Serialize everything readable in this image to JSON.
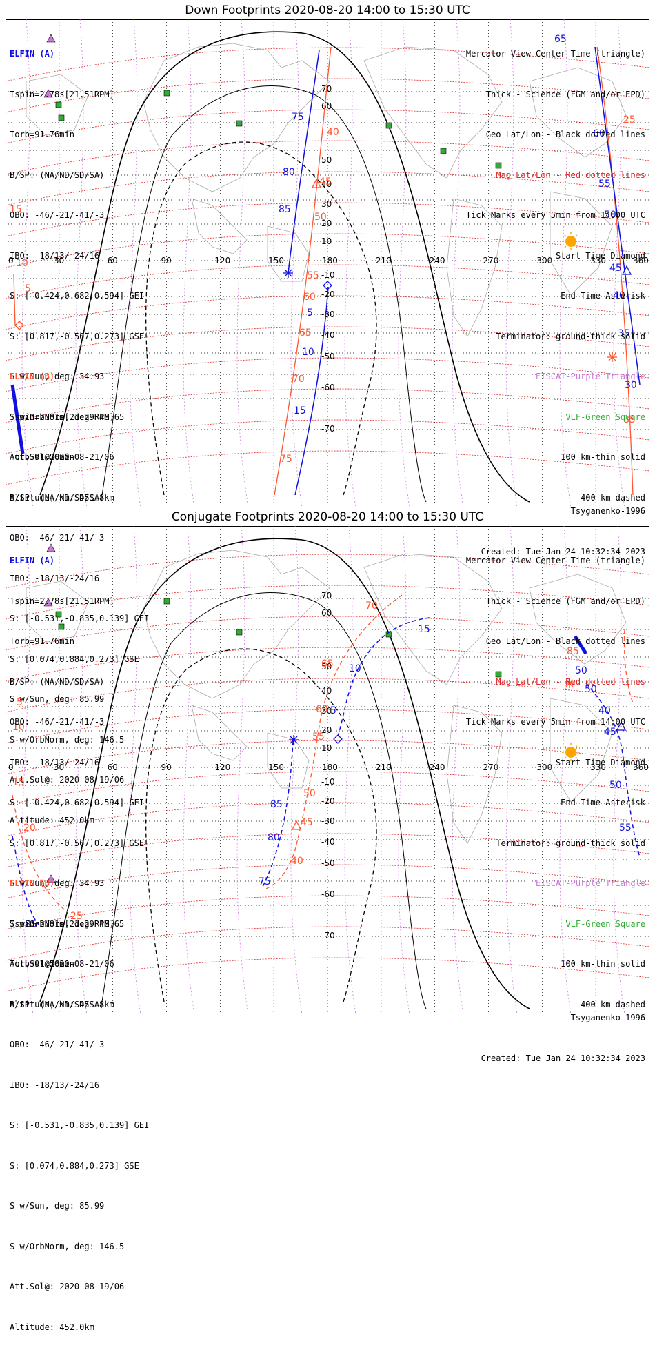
{
  "panels": [
    {
      "title": "Down Footprints 2020-08-20 14:00 to 15:30 UTC",
      "sat_a": {
        "name": "ELFIN (A)",
        "lines": [
          "Tspin=2.78s[21.51RPM]",
          "Torb=91.76min",
          "B/SP: (NA/ND/SD/SA)",
          "OBO: -46/-21/-41/-3",
          "IBO: -18/13/-24/16",
          "S: [-0.424,0.682,0.594] GEI",
          "S: [0.817,-0.507,0.273] GSE",
          "S w/Sun, deg: 34.93",
          "S w/OrbNorm, deg: 48.65",
          "Att.Sol@2020-08-21/06",
          "Altitude, km: 451.8km"
        ]
      },
      "sat_b": {
        "name": "ELFIN (B)",
        "lines": [
          "Tspin=2.81s[21.29RPM]",
          "Torb=91.56min",
          "B/SP: (NA/ND/SD/SA)",
          "OBO: -46/-21/-41/-3",
          "IBO: -18/13/-24/16",
          "S: [-0.531,-0.835,0.139] GEI",
          "S: [0.074,0.884,0.273] GSE",
          "S w/Sun, deg: 85.99",
          "S w/OrbNorm, deg: 146.5",
          "Att.Sol@: 2020-08-19/06",
          "Altitude: 452.0km"
        ]
      },
      "legend": [
        "Mercator View Center Time (triangle)",
        "Thick - Science (FGM and/or EPD)",
        "Geo Lat/Lon - Black dotted lines",
        "Mag Lat/Lon - Red dotted lines",
        "Tick Marks every 5min from 14:00 UTC",
        "Start Time-Diamond",
        "End Time-Asterisk",
        "Terminator: ground-thick solid",
        "EISCAT-Purple Triangle",
        "VLF-Green Square",
        "100 km-thin solid",
        "400 km-dashed"
      ],
      "model": "Tsyganenko-1996",
      "created": "Created: Tue Jan 24 10:32:34 2023"
    },
    {
      "title": "Conjugate Footprints 2020-08-20 14:00 to 15:30 UTC",
      "sat_a": {
        "name": "ELFIN (A)",
        "lines": [
          "Tspin=2.78s[21.51RPM]",
          "Torb=91.76min",
          "B/SP: (NA/ND/SD/SA)",
          "OBO: -46/-21/-41/-3",
          "IBO: -18/13/-24/16",
          "S: [-0.424,0.682,0.594] GEI",
          "S: [0.817,-0.507,0.273] GSE",
          "S w/Sun, deg: 34.93",
          "S w/OrbNorm, deg: 48.65",
          "Att.Sol@2020-08-21/06",
          "Altitude, km: 451.8km"
        ]
      },
      "sat_b": {
        "name": "ELFIN (B)",
        "lines": [
          "Tspin=2.81s[21.29RPM]",
          "Torb=91.56min",
          "B/SP: (NA/ND/SD/SA)",
          "OBO: -46/-21/-41/-3",
          "IBO: -18/13/-24/16",
          "S: [-0.531,-0.835,0.139] GEI",
          "S: [0.074,0.884,0.273] GSE",
          "S w/Sun, deg: 85.99",
          "S w/OrbNorm, deg: 146.5",
          "Att.Sol@: 2020-08-19/06",
          "Altitude: 452.0km"
        ]
      },
      "legend": [
        "Mercator View Center Time (triangle)",
        "Thick - Science (FGM and/or EPD)",
        "Geo Lat/Lon - Black dotted lines",
        "Mag Lat/Lon - Red dotted lines",
        "Tick Marks every 5min from 14:00 UTC",
        "Start Time-Diamond",
        "End Time-Asterisk",
        "Terminator: ground-thick solid",
        "EISCAT-Purple Triangle",
        "VLF-Green Square",
        "100 km-thin solid",
        "400 km-dashed"
      ],
      "model": "Tsyganenko-1996",
      "created": "Created: Tue Jan 24 10:32:34 2023"
    }
  ],
  "axes": {
    "lon_ticks": [
      "0",
      "30",
      "60",
      "90",
      "120",
      "150",
      "180",
      "210",
      "240",
      "270",
      "300",
      "330",
      "360"
    ],
    "lat_ticks": [
      "70",
      "60",
      "50",
      "40",
      "30",
      "20",
      "10",
      "-10",
      "-20",
      "-30",
      "-40",
      "-50",
      "-60",
      "-70"
    ]
  },
  "tick_labels": {
    "down_a": [
      "75",
      "80",
      "85",
      "5",
      "10",
      "15",
      "65",
      "60",
      "55",
      "50",
      "45",
      "40",
      "35",
      "30"
    ],
    "down_b": [
      "10",
      "5",
      "15",
      "40",
      "45",
      "50",
      "55",
      "60",
      "65",
      "70",
      "75",
      "85",
      "25"
    ],
    "conj_a": [
      "85",
      "80",
      "75",
      "5",
      "10",
      "15",
      "50",
      "40",
      "45",
      "50",
      "55"
    ],
    "conj_b": [
      "5",
      "10",
      "15",
      "20",
      "25",
      "65",
      "60",
      "55",
      "50",
      "45",
      "40",
      "70",
      "85"
    ]
  },
  "colors": {
    "elfin_a": "#1010e0",
    "elfin_b": "#ff5530",
    "mag_grid": "#e02020",
    "geo_grid": "#000000",
    "coast": "#aaaaaa",
    "vlf": "#33aa33",
    "eiscat": "#cc77dd",
    "sun": "#ffa500"
  }
}
